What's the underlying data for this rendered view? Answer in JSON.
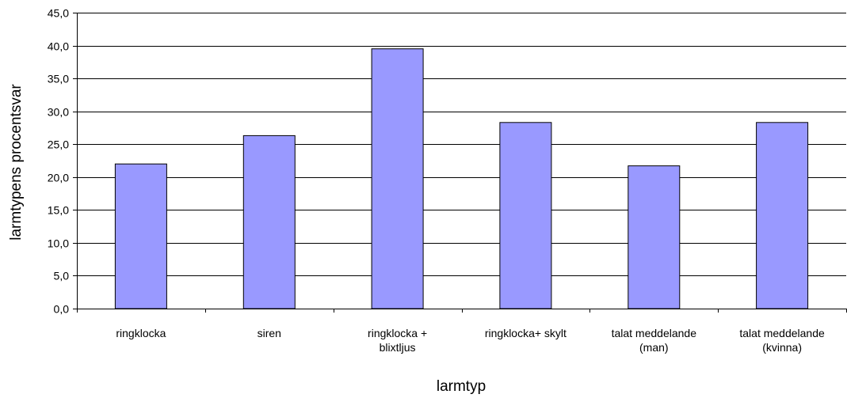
{
  "chart_data": {
    "type": "bar",
    "title": "",
    "xlabel": "larmtyp",
    "ylabel": "larmtypens procentsvar",
    "categories": [
      [
        "ringklocka"
      ],
      [
        "siren"
      ],
      [
        "ringklocka +",
        "blixtljus"
      ],
      [
        "ringklocka+ skylt"
      ],
      [
        "talat meddelande",
        "(man)"
      ],
      [
        "talat meddelande",
        "(kvinna)"
      ]
    ],
    "values": [
      22.0,
      26.3,
      39.5,
      28.3,
      21.7,
      28.3
    ],
    "ylim": [
      0,
      45
    ],
    "ytick_step": 5,
    "ytick_labels": [
      "0,0",
      "5,0",
      "10,0",
      "15,0",
      "20,0",
      "25,0",
      "30,0",
      "35,0",
      "40,0",
      "45,0"
    ],
    "grid": true,
    "legend": "none",
    "colors": {
      "bar_fill": "#9999ff",
      "bar_stroke": "#000000",
      "grid": "#000000",
      "axis": "#000000"
    }
  }
}
